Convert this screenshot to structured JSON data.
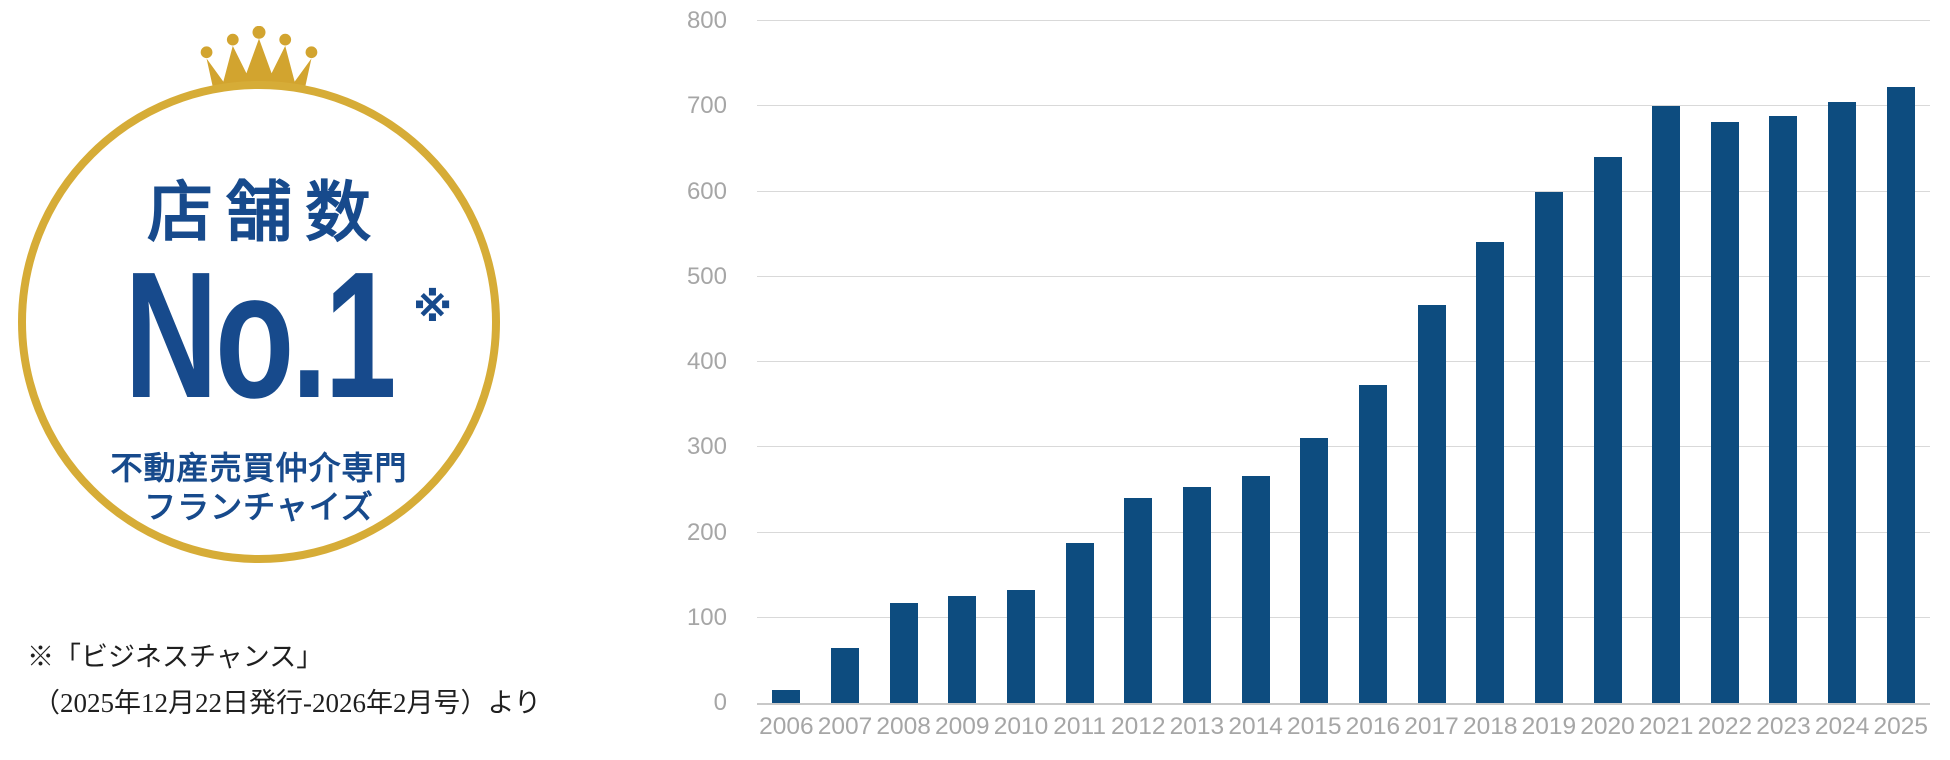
{
  "badge": {
    "title": "店舗数",
    "rank": "No.1",
    "rank_note_mark": "※",
    "subtitle_line1": "不動産売買仲介専門",
    "subtitle_line2": "フランチャイズ",
    "text_color": "#174a8c",
    "gold_color": "#d2a42f",
    "ring_color": "#d6ac37"
  },
  "footnote": {
    "line1": "※「ビジネスチャンス」",
    "line2": "（2025年12月22日発行-2026年2月号）より"
  },
  "chart_data": {
    "type": "bar",
    "title": "",
    "xlabel": "",
    "ylabel": "",
    "categories": [
      "2006",
      "2007",
      "2008",
      "2009",
      "2010",
      "2011",
      "2012",
      "2013",
      "2014",
      "2015",
      "2016",
      "2017",
      "2018",
      "2019",
      "2020",
      "2021",
      "2022",
      "2023",
      "2024",
      "2025"
    ],
    "values": [
      15,
      65,
      117,
      126,
      133,
      188,
      240,
      253,
      266,
      311,
      373,
      467,
      541,
      600,
      640,
      700,
      682,
      688,
      705,
      723
    ],
    "ylim": [
      0,
      800
    ],
    "yticks": [
      0,
      100,
      200,
      300,
      400,
      500,
      600,
      700,
      800
    ],
    "grid": true,
    "legend": "none",
    "bar_color": "#0d4c7f",
    "gridline_color": "#d9d9d9",
    "axis_line_color": "#c8c8c8",
    "tick_label_color": "#a6a6a6"
  }
}
